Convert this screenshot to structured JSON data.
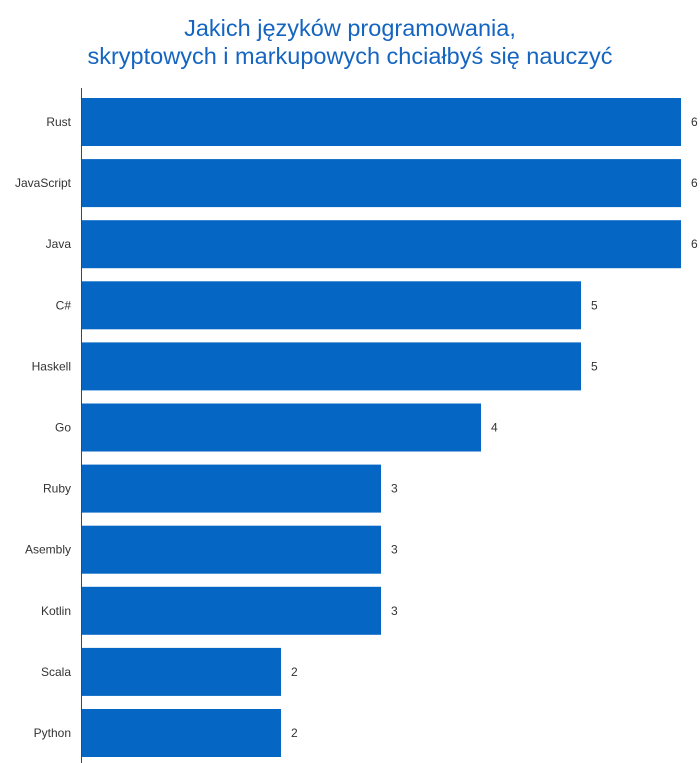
{
  "chart_data": {
    "type": "bar",
    "orientation": "horizontal",
    "title_lines": [
      "Jakich języków programowania,",
      "skryptowych i markupowych chciałbyś się nauczyć"
    ],
    "categories": [
      "Rust",
      "JavaScript",
      "Java",
      "C#",
      "Haskell",
      "Go",
      "Ruby",
      "Asembly",
      "Kotlin",
      "Scala",
      "Python"
    ],
    "values": [
      6,
      6,
      6,
      5,
      5,
      4,
      3,
      3,
      3,
      2,
      2
    ],
    "xlim": [
      0,
      6
    ],
    "bar_color": "#0566c3",
    "title_color": "#1565c0",
    "grid": false,
    "show_value_labels": true
  }
}
